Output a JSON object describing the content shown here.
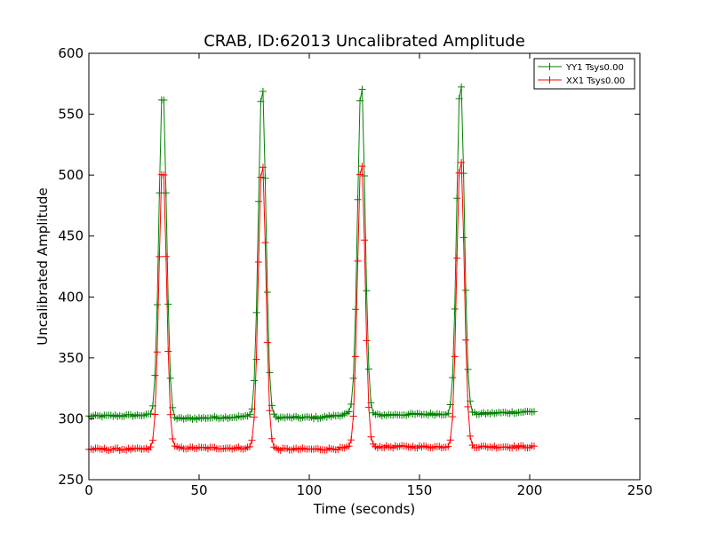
{
  "chart_data": {
    "type": "line",
    "title": "CRAB, ID:62013 Uncalibrated Amplitude",
    "xlabel": "Time (seconds)",
    "ylabel": "Uncalibrated Amplitude",
    "xlim": [
      0,
      250
    ],
    "ylim": [
      250,
      600
    ],
    "xticks": [
      "0",
      "50",
      "100",
      "150",
      "200",
      "250"
    ],
    "yticks": [
      "250",
      "300",
      "350",
      "400",
      "450",
      "500",
      "550",
      "600"
    ],
    "grid": false,
    "legend_position": "top-right",
    "x_start": 0,
    "x_step": 1,
    "series": [
      {
        "name": "YY1 Tsys0.00",
        "color": "#008000",
        "marker": "plus",
        "baseline_segments": [
          [
            0,
            302
          ],
          [
            27,
            303
          ],
          [
            40,
            300
          ],
          [
            75,
            302
          ],
          [
            86,
            301
          ],
          [
            105,
            301
          ],
          [
            118,
            304
          ],
          [
            130,
            303
          ],
          [
            160,
            304
          ],
          [
            176,
            304
          ],
          [
            202,
            306
          ]
        ],
        "peaks": [
          {
            "center": 33.5,
            "amplitude": 272,
            "sigma": 1.7
          },
          {
            "center": 78.6,
            "amplitude": 275,
            "sigma": 1.7
          },
          {
            "center": 123.6,
            "amplitude": 275,
            "sigma": 1.7
          },
          {
            "center": 168.6,
            "amplitude": 276,
            "sigma": 1.7
          }
        ]
      },
      {
        "name": "XX1 Tsys0.00",
        "color": "#ff0000",
        "marker": "plus",
        "baseline_segments": [
          [
            0,
            275
          ],
          [
            27,
            275
          ],
          [
            40,
            276
          ],
          [
            75,
            276
          ],
          [
            86,
            275
          ],
          [
            105,
            275
          ],
          [
            118,
            276
          ],
          [
            130,
            277
          ],
          [
            160,
            277
          ],
          [
            176,
            277
          ],
          [
            202,
            277
          ]
        ],
        "peaks": [
          {
            "center": 33.5,
            "amplitude": 234,
            "sigma": 1.7
          },
          {
            "center": 78.6,
            "amplitude": 237,
            "sigma": 1.7
          },
          {
            "center": 123.6,
            "amplitude": 238,
            "sigma": 1.7
          },
          {
            "center": 168.6,
            "amplitude": 240,
            "sigma": 1.7
          }
        ]
      }
    ]
  }
}
